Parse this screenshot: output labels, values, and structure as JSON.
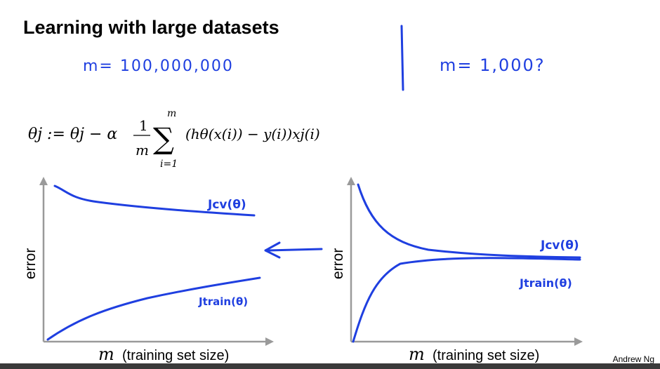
{
  "slide": {
    "title": "Learning with large datasets",
    "footer": "Andrew Ng",
    "note_left": "m= 100,000,000",
    "note_right": "m= 1,000?",
    "formula": {
      "lhs": "θj := θj − α",
      "frac_num": "1",
      "frac_den": "m",
      "sum_top": "m",
      "sum_bottom": "i=1",
      "body": "(hθ(x(i)) − y(i))xj(i)"
    }
  },
  "plots": [
    {
      "ylabel": "error",
      "xlabel_var": "m",
      "xlabel_text": "(training set size)",
      "curves": [
        {
          "label": "Jcv(θ)"
        },
        {
          "label": "Jtrain(θ)"
        }
      ]
    },
    {
      "ylabel": "error",
      "xlabel_var": "m",
      "xlabel_text": "(training set size)",
      "curves": [
        {
          "label": "Jcv(θ)"
        },
        {
          "label": "Jtrain(θ)"
        }
      ]
    }
  ],
  "colors": {
    "ink": "#1f3fe0",
    "axis": "#9a9a9a"
  }
}
